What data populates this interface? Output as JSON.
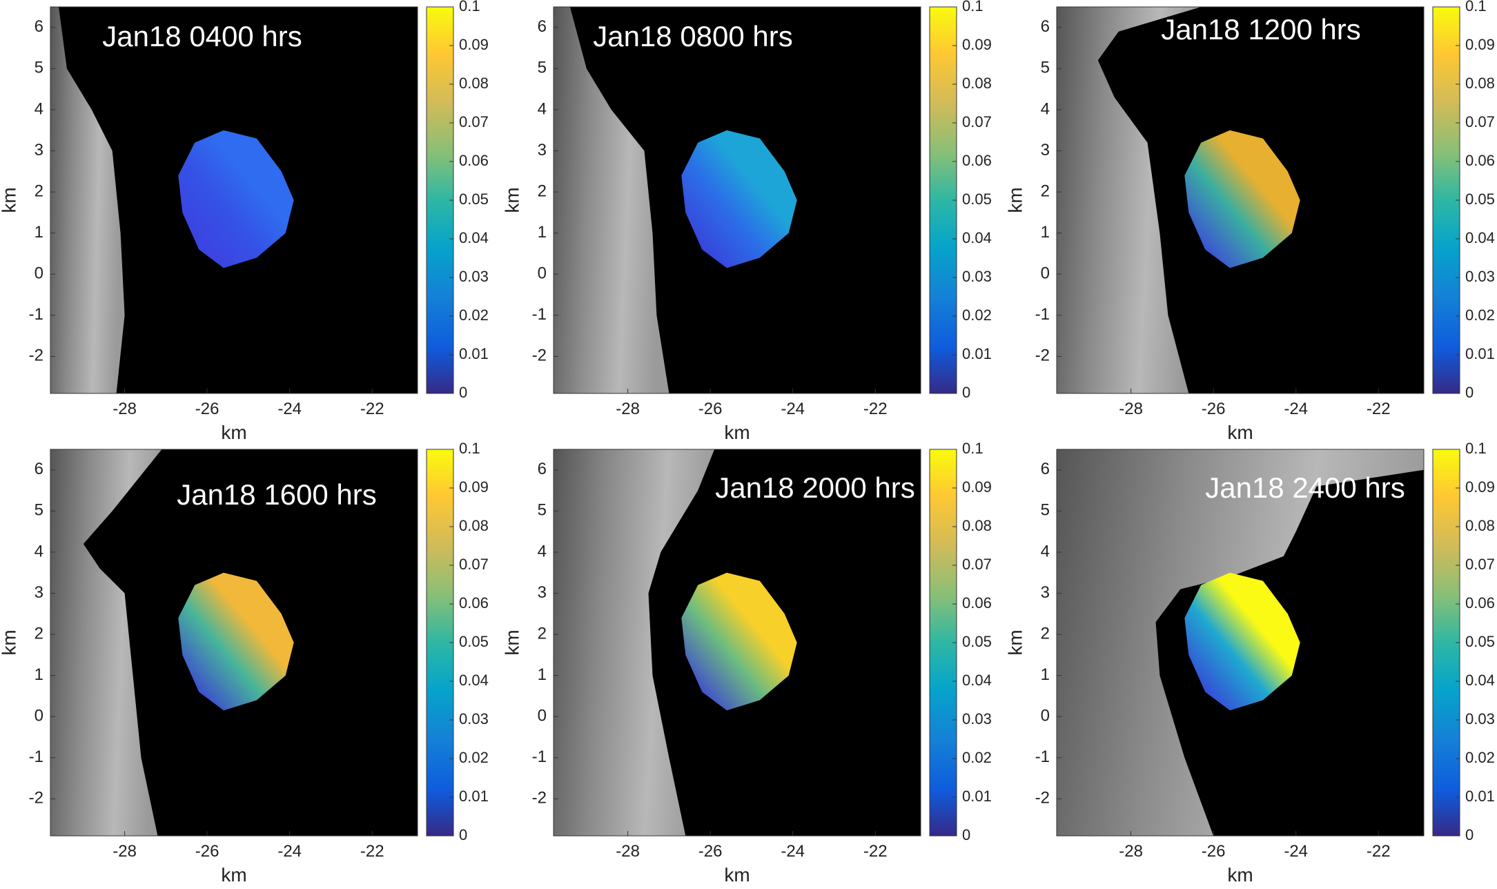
{
  "chart_data": [
    {
      "type": "image",
      "title": "Jan18 0400 hrs",
      "xlabel": "km",
      "ylabel": "km",
      "xlim": [
        -29.8,
        -20.9
      ],
      "ylim": [
        -2.9,
        6.5
      ],
      "xticks": [
        -28,
        -26,
        -24,
        -22
      ],
      "yticks": [
        -2,
        -1,
        0,
        1,
        2,
        3,
        4,
        5,
        6
      ],
      "colorbar": {
        "lim": [
          0,
          0.1
        ],
        "ticks": [
          0,
          0.01,
          0.02,
          0.03,
          0.04,
          0.05,
          0.06,
          0.07,
          0.08,
          0.09,
          0.1
        ],
        "colormap": "parula"
      }
    },
    {
      "type": "image",
      "title": "Jan18 0800 hrs",
      "xlabel": "km",
      "ylabel": "km",
      "xlim": [
        -29.8,
        -20.9
      ],
      "ylim": [
        -2.9,
        6.5
      ],
      "xticks": [
        -28,
        -26,
        -24,
        -22
      ],
      "yticks": [
        -2,
        -1,
        0,
        1,
        2,
        3,
        4,
        5,
        6
      ],
      "colorbar": {
        "lim": [
          0,
          0.1
        ],
        "ticks": [
          0,
          0.01,
          0.02,
          0.03,
          0.04,
          0.05,
          0.06,
          0.07,
          0.08,
          0.09,
          0.1
        ],
        "colormap": "parula"
      }
    },
    {
      "type": "image",
      "title": "Jan18 1200 hrs",
      "xlabel": "km",
      "ylabel": "km",
      "xlim": [
        -29.8,
        -20.9
      ],
      "ylim": [
        -2.9,
        6.5
      ],
      "xticks": [
        -28,
        -26,
        -24,
        -22
      ],
      "yticks": [
        -2,
        -1,
        0,
        1,
        2,
        3,
        4,
        5,
        6
      ],
      "colorbar": {
        "lim": [
          0,
          0.1
        ],
        "ticks": [
          0,
          0.01,
          0.02,
          0.03,
          0.04,
          0.05,
          0.06,
          0.07,
          0.08,
          0.09,
          0.1
        ],
        "colormap": "parula"
      }
    },
    {
      "type": "image",
      "title": "Jan18 1600 hrs",
      "xlabel": "km",
      "ylabel": "km",
      "xlim": [
        -29.8,
        -20.9
      ],
      "ylim": [
        -2.9,
        6.5
      ],
      "xticks": [
        -28,
        -26,
        -24,
        -22
      ],
      "yticks": [
        -2,
        -1,
        0,
        1,
        2,
        3,
        4,
        5,
        6
      ],
      "colorbar": {
        "lim": [
          0,
          0.1
        ],
        "ticks": [
          0,
          0.01,
          0.02,
          0.03,
          0.04,
          0.05,
          0.06,
          0.07,
          0.08,
          0.09,
          0.1
        ],
        "colormap": "parula"
      }
    },
    {
      "type": "image",
      "title": "Jan18 2000 hrs",
      "xlabel": "km",
      "ylabel": "km",
      "xlim": [
        -29.8,
        -20.9
      ],
      "ylim": [
        -2.9,
        6.5
      ],
      "xticks": [
        -28,
        -26,
        -24,
        -22
      ],
      "yticks": [
        -2,
        -1,
        0,
        1,
        2,
        3,
        4,
        5,
        6
      ],
      "colorbar": {
        "lim": [
          0,
          0.1
        ],
        "ticks": [
          0,
          0.01,
          0.02,
          0.03,
          0.04,
          0.05,
          0.06,
          0.07,
          0.08,
          0.09,
          0.1
        ],
        "colormap": "parula"
      }
    },
    {
      "type": "image",
      "title": "Jan18 2400 hrs",
      "xlabel": "km",
      "ylabel": "km",
      "xlim": [
        -29.8,
        -20.9
      ],
      "ylim": [
        -2.9,
        6.5
      ],
      "xticks": [
        -28,
        -26,
        -24,
        -22
      ],
      "yticks": [
        -2,
        -1,
        0,
        1,
        2,
        3,
        4,
        5,
        6
      ],
      "colorbar": {
        "lim": [
          0,
          0.1
        ],
        "ticks": [
          0,
          0.01,
          0.02,
          0.03,
          0.04,
          0.05,
          0.06,
          0.07,
          0.08,
          0.09,
          0.1
        ],
        "colormap": "parula"
      }
    }
  ]
}
